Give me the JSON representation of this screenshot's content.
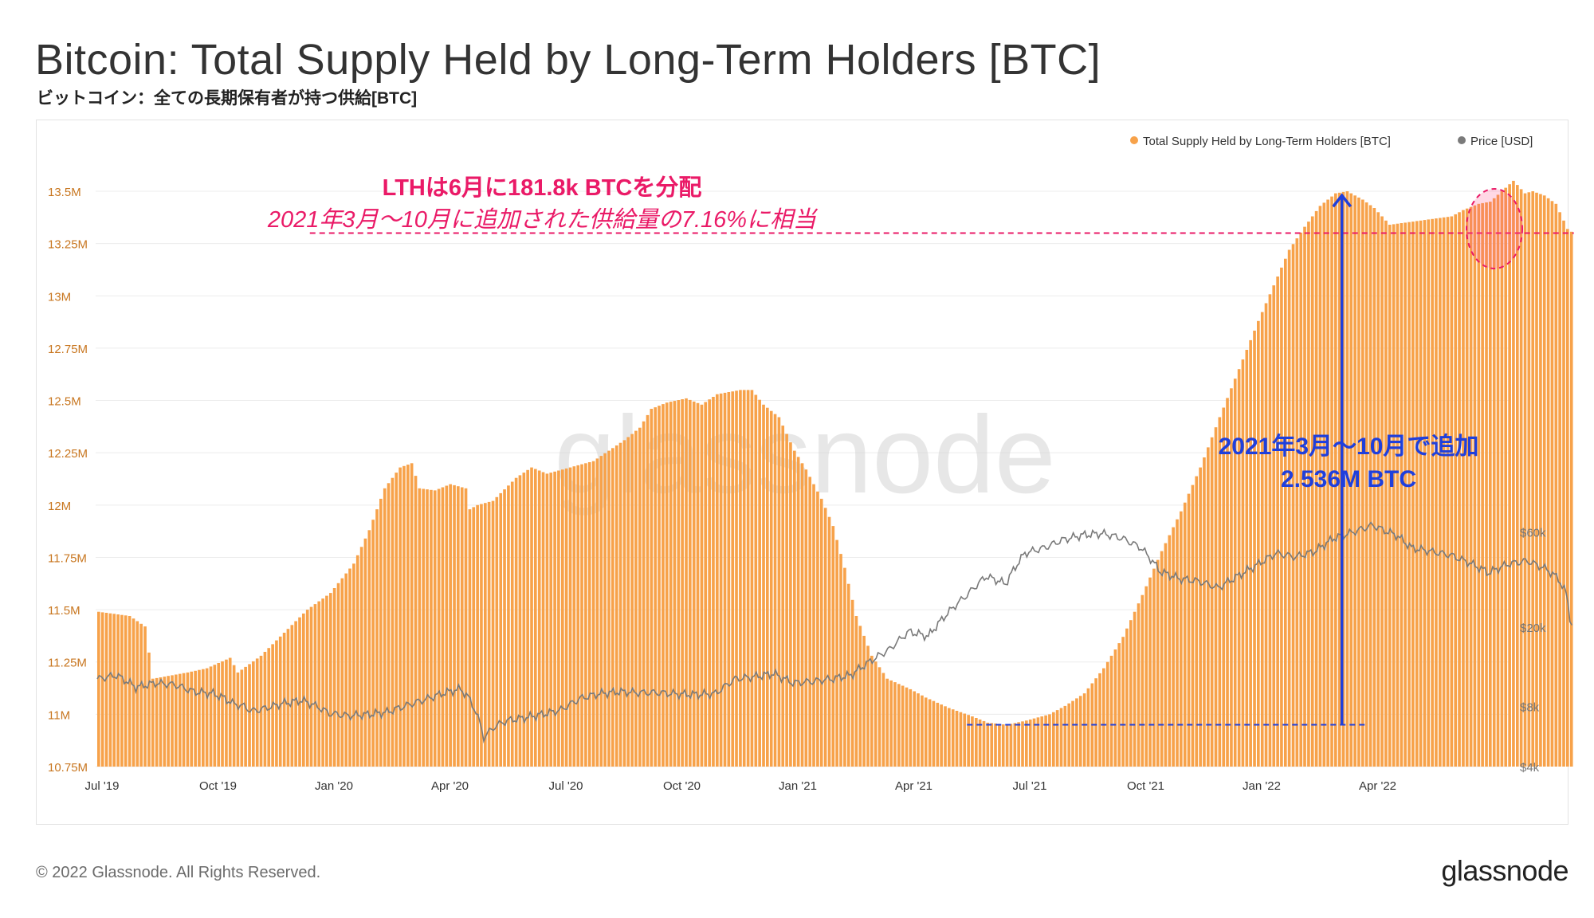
{
  "title": "Bitcoin: Total Supply Held by Long-Term Holders [BTC]",
  "subtitle": "ビットコイン：全ての長期保有者が持つ供給[BTC]",
  "footer": "© 2022 Glassnode. All Rights Reserved.",
  "brand": "glassnode",
  "watermark": "glassnode",
  "colors": {
    "supply": "#f7a24a",
    "price": "#7a7a7a",
    "annotation_red": "#ea1a67",
    "annotation_blue": "#1f3fdc",
    "axis_left": "#c8761f",
    "axis_right": "#777777"
  },
  "annotations": {
    "red_line1": "LTHは6月に181.8k BTCを分配",
    "red_line2": "2021年3月〜10月に追加された供給量の7.16%に相当",
    "blue_line1": "2021年3月〜10月で追加",
    "blue_line2": "2.536M BTC"
  },
  "chart_data": {
    "type": "bar",
    "x_tick_labels": [
      "Jul '19",
      "Oct '19",
      "Jan '20",
      "Apr '20",
      "Jul '20",
      "Oct '20",
      "Jan '21",
      "Apr '21",
      "Jul '21",
      "Oct '21",
      "Jan '22",
      "Apr '22"
    ],
    "legend": [
      {
        "name": "Total Supply Held by Long-Term Holders [BTC]",
        "color": "#f7a24a"
      },
      {
        "name": "Price [USD]",
        "color": "#7a7a7a"
      }
    ],
    "legend_position": "top-right",
    "y_left": {
      "ticks": [
        "13.5M",
        "13.25M",
        "13M",
        "12.75M",
        "12.5M",
        "12.25M",
        "12M",
        "11.75M",
        "11.5M",
        "11.25M",
        "11M",
        "10.75M"
      ],
      "range": [
        10.75,
        13.5
      ],
      "unit": "M BTC"
    },
    "y_right": {
      "ticks": [
        "$60k",
        "$20k",
        "$8k",
        "$4k"
      ],
      "scale": "log"
    },
    "grid": true,
    "x_range_months": [
      0,
      36
    ],
    "series": [
      {
        "name": "Total Supply Held by Long-Term Holders [BTC]",
        "type": "bar",
        "unit": "M BTC",
        "points": [
          [
            0,
            11.49
          ],
          [
            0.8,
            11.47
          ],
          [
            1.2,
            11.42
          ],
          [
            1.4,
            11.17
          ],
          [
            2.3,
            11.2
          ],
          [
            2.8,
            11.22
          ],
          [
            3.4,
            11.27
          ],
          [
            3.6,
            11.2
          ],
          [
            4.2,
            11.28
          ],
          [
            4.8,
            11.39
          ],
          [
            5.4,
            11.5
          ],
          [
            6.0,
            11.58
          ],
          [
            6.6,
            11.72
          ],
          [
            7.0,
            11.88
          ],
          [
            7.4,
            12.08
          ],
          [
            7.8,
            12.18
          ],
          [
            8.1,
            12.2
          ],
          [
            8.3,
            12.08
          ],
          [
            8.7,
            12.07
          ],
          [
            9.1,
            12.1
          ],
          [
            9.5,
            12.08
          ],
          [
            9.6,
            11.98
          ],
          [
            9.8,
            12.0
          ],
          [
            10.2,
            12.02
          ],
          [
            10.8,
            12.13
          ],
          [
            11.2,
            12.18
          ],
          [
            11.6,
            12.15
          ],
          [
            12.2,
            12.18
          ],
          [
            12.8,
            12.21
          ],
          [
            13.2,
            12.26
          ],
          [
            13.6,
            12.31
          ],
          [
            14.0,
            12.37
          ],
          [
            14.3,
            12.46
          ],
          [
            14.7,
            12.49
          ],
          [
            15.2,
            12.51
          ],
          [
            15.6,
            12.48
          ],
          [
            16.0,
            12.53
          ],
          [
            16.6,
            12.55
          ],
          [
            16.9,
            12.55
          ],
          [
            17.2,
            12.48
          ],
          [
            17.6,
            12.42
          ],
          [
            18.0,
            12.26
          ],
          [
            18.3,
            12.17
          ],
          [
            18.7,
            12.03
          ],
          [
            19.0,
            11.9
          ],
          [
            19.3,
            11.7
          ],
          [
            19.6,
            11.47
          ],
          [
            20.0,
            11.28
          ],
          [
            20.4,
            11.17
          ],
          [
            21.0,
            11.12
          ],
          [
            21.4,
            11.08
          ],
          [
            22.0,
            11.03
          ],
          [
            22.6,
            10.99
          ],
          [
            23.0,
            10.96
          ],
          [
            23.5,
            10.95
          ],
          [
            24.0,
            10.97
          ],
          [
            24.6,
            11.0
          ],
          [
            25.0,
            11.04
          ],
          [
            25.5,
            11.1
          ],
          [
            26.0,
            11.22
          ],
          [
            26.5,
            11.37
          ],
          [
            27.0,
            11.57
          ],
          [
            27.5,
            11.78
          ],
          [
            28.0,
            11.97
          ],
          [
            28.5,
            12.18
          ],
          [
            29.0,
            12.42
          ],
          [
            29.5,
            12.65
          ],
          [
            30.0,
            12.88
          ],
          [
            30.4,
            13.05
          ],
          [
            30.8,
            13.22
          ],
          [
            31.2,
            13.33
          ],
          [
            31.6,
            13.43
          ],
          [
            32.0,
            13.49
          ],
          [
            32.3,
            13.5
          ],
          [
            32.7,
            13.46
          ],
          [
            33.0,
            13.42
          ],
          [
            33.4,
            13.34
          ],
          [
            33.8,
            13.35
          ],
          [
            34.2,
            13.36
          ],
          [
            34.6,
            13.37
          ],
          [
            35.0,
            13.38
          ],
          [
            35.3,
            13.41
          ],
          [
            35.7,
            13.44
          ],
          [
            36.0,
            13.45
          ],
          [
            36.3,
            13.5
          ],
          [
            36.6,
            13.55
          ],
          [
            36.9,
            13.49
          ],
          [
            37.1,
            13.5
          ],
          [
            37.4,
            13.48
          ],
          [
            37.7,
            13.44
          ],
          [
            38.0,
            13.32
          ],
          [
            38.15,
            13.3
          ]
        ]
      },
      {
        "name": "Price [USD]",
        "type": "line",
        "unit": "USD",
        "scale": "log",
        "points": [
          [
            0,
            11000
          ],
          [
            0.5,
            11500
          ],
          [
            1.0,
            10000
          ],
          [
            1.5,
            10500
          ],
          [
            2.0,
            10300
          ],
          [
            2.5,
            9500
          ],
          [
            3.0,
            9300
          ],
          [
            3.3,
            8800
          ],
          [
            3.5,
            8300
          ],
          [
            3.8,
            8000
          ],
          [
            4.0,
            7600
          ],
          [
            4.3,
            7800
          ],
          [
            4.8,
            8300
          ],
          [
            5.3,
            8600
          ],
          [
            5.7,
            8000
          ],
          [
            6.0,
            7400
          ],
          [
            6.5,
            7200
          ],
          [
            7.0,
            7300
          ],
          [
            7.5,
            7500
          ],
          [
            8.0,
            8100
          ],
          [
            8.5,
            8700
          ],
          [
            9.0,
            9400
          ],
          [
            9.4,
            9800
          ],
          [
            9.6,
            8900
          ],
          [
            9.8,
            7500
          ],
          [
            10.0,
            5600
          ],
          [
            10.3,
            6400
          ],
          [
            10.6,
            6800
          ],
          [
            11.0,
            7000
          ],
          [
            11.5,
            7300
          ],
          [
            12.0,
            7700
          ],
          [
            12.5,
            8800
          ],
          [
            13.0,
            9300
          ],
          [
            13.5,
            9500
          ],
          [
            14.0,
            9400
          ],
          [
            14.5,
            9400
          ],
          [
            15.0,
            9250
          ],
          [
            15.5,
            9200
          ],
          [
            16.0,
            9300
          ],
          [
            16.5,
            11000
          ],
          [
            17.0,
            11300
          ],
          [
            17.5,
            11700
          ],
          [
            18.0,
            10500
          ],
          [
            18.5,
            10700
          ],
          [
            19.0,
            11000
          ],
          [
            19.5,
            11500
          ],
          [
            20.0,
            13500
          ],
          [
            20.5,
            15500
          ],
          [
            21.0,
            19000
          ],
          [
            21.5,
            18000
          ],
          [
            22.0,
            23500
          ],
          [
            22.5,
            29000
          ],
          [
            23.0,
            36000
          ],
          [
            23.5,
            33000
          ],
          [
            24.0,
            47000
          ],
          [
            24.5,
            50000
          ],
          [
            25.0,
            55000
          ],
          [
            25.5,
            58000
          ],
          [
            26.0,
            59000
          ],
          [
            26.5,
            56000
          ],
          [
            27.0,
            50000
          ],
          [
            27.5,
            38000
          ],
          [
            28.0,
            35000
          ],
          [
            28.5,
            34000
          ],
          [
            29.0,
            31500
          ],
          [
            29.5,
            36000
          ],
          [
            30.0,
            41000
          ],
          [
            30.5,
            47000
          ],
          [
            31.0,
            45000
          ],
          [
            31.5,
            48000
          ],
          [
            32.0,
            56000
          ],
          [
            32.5,
            60000
          ],
          [
            33.0,
            65000
          ],
          [
            33.3,
            61000
          ],
          [
            33.6,
            58000
          ],
          [
            34.0,
            50000
          ],
          [
            34.5,
            48000
          ],
          [
            35.0,
            46000
          ],
          [
            35.5,
            42000
          ],
          [
            36.0,
            37500
          ],
          [
            36.5,
            41500
          ],
          [
            37.0,
            43000
          ],
          [
            37.5,
            39000
          ],
          [
            37.8,
            35000
          ],
          [
            38.0,
            29500
          ],
          [
            38.1,
            22500
          ],
          [
            38.15,
            20500
          ]
        ]
      }
    ],
    "reference_lines": [
      {
        "type": "horizontal",
        "y": 13.3,
        "x_from": 5.5,
        "x_to": 38.2,
        "style": "dashed",
        "color": "#ea1a67"
      },
      {
        "type": "horizontal",
        "y": 10.95,
        "x_from": 22.5,
        "x_to": 32.8,
        "style": "dashed",
        "color": "#1f3fdc"
      },
      {
        "type": "arrow",
        "x": 32.2,
        "y_from": 10.95,
        "y_to": 13.48,
        "color": "#1f3fdc"
      }
    ]
  }
}
